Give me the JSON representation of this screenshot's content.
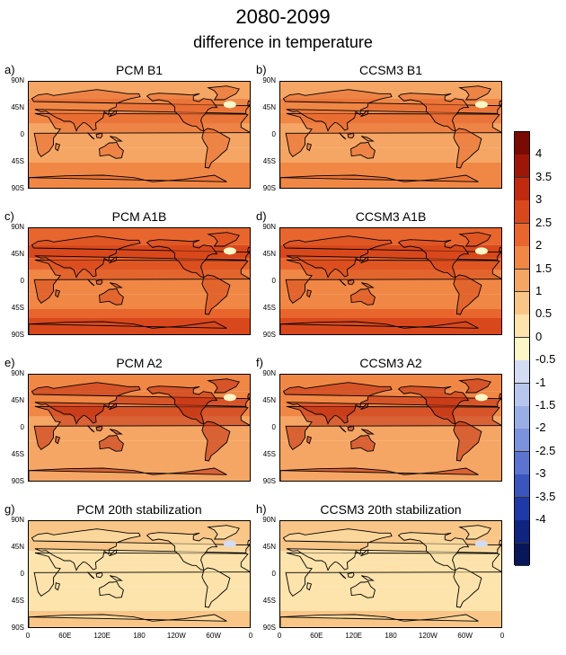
{
  "title": "2080-2099",
  "subtitle": "difference in temperature",
  "panels": [
    {
      "label": "a)",
      "title": "PCM B1",
      "level": 1
    },
    {
      "label": "b)",
      "title": "CCSM3 B1",
      "level": 1
    },
    {
      "label": "c)",
      "title": "PCM A1B",
      "level": 2
    },
    {
      "label": "d)",
      "title": "CCSM3 A1B",
      "level": 2
    },
    {
      "label": "e)",
      "title": "PCM A2",
      "level": 3
    },
    {
      "label": "f)",
      "title": "CCSM3 A2",
      "level": 3
    },
    {
      "label": "g)",
      "title": "PCM 20th stabilization",
      "level": 0
    },
    {
      "label": "h)",
      "title": "CCSM3 20th stabilization",
      "level": 0
    }
  ],
  "lat_ticks": [
    "90N",
    "45N",
    "0",
    "45S",
    "90S"
  ],
  "lon_ticks": [
    "0",
    "60E",
    "120E",
    "180",
    "120W",
    "60W",
    "0"
  ],
  "colorbar": {
    "labels": [
      "4",
      "3.5",
      "3",
      "2.5",
      "2",
      "1.5",
      "1",
      "0.5",
      "0",
      "-0.5",
      "-1",
      "-1.5",
      "-2",
      "-2.5",
      "-3",
      "-3.5",
      "-4"
    ],
    "colors": [
      "#7a0a04",
      "#9e1608",
      "#c12a0e",
      "#d9481c",
      "#e8662e",
      "#f08745",
      "#f5a664",
      "#f9c687",
      "#fde3ac",
      "#fdf6c6",
      "#d4dcf4",
      "#b8c6ee",
      "#9aaee6",
      "#7b93dc",
      "#5a74cf",
      "#3a55be",
      "#1f3aa6",
      "#0f247f",
      "#08175a"
    ]
  }
}
